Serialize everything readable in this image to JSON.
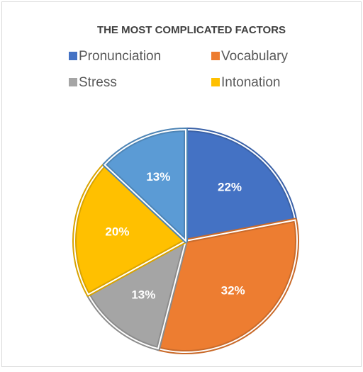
{
  "chart_data": {
    "type": "pie",
    "title": "THE MOST COMPLICATED FACTORS",
    "categories": [
      "Pronunciation",
      "Vocabulary",
      "Stress",
      "Intonation",
      null
    ],
    "values": [
      22,
      32,
      13,
      20,
      13
    ],
    "value_labels": [
      "22%",
      "32%",
      "13%",
      "20%",
      "13%"
    ],
    "colors": [
      "#4472c4",
      "#ed7d31",
      "#a5a5a5",
      "#ffc000",
      "#5b9bd5"
    ],
    "legend": "top"
  }
}
